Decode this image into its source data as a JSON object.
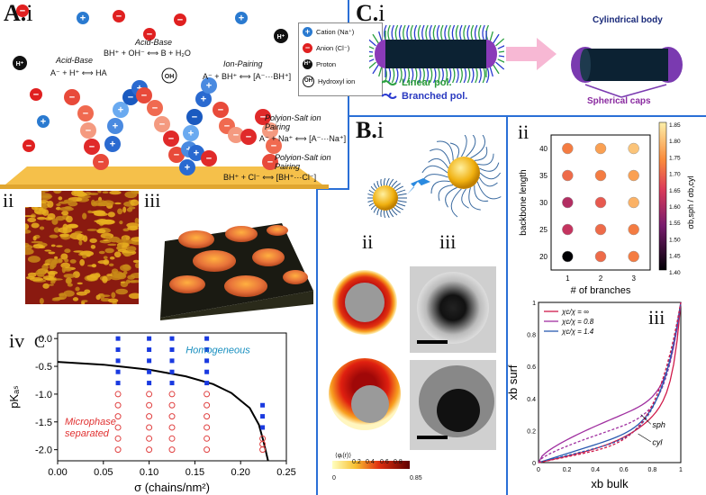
{
  "panel_a": {
    "label_a": "A.",
    "label_i": "i",
    "acid_base_left": "Acid-Base",
    "acid_base_left_eq": "A⁻ + H⁺ ⟺ HA",
    "acid_base_mid": "Acid-Base",
    "acid_base_mid_eq": "BH⁺ + OH⁻ ⟺ B + H₂O",
    "ion_pairing": "Ion-Pairing",
    "ion_pairing_eq": "A⁻ + BH⁺ ⟺ [A⁻···BH⁺]",
    "polyion_salt_1": "Polyion-Salt ion Pairing",
    "polyion_salt_1_eq": "A⁻ + Na⁺ ⟺ [A⁻···Na⁺]",
    "polyion_salt_2": "Polyion-Salt ion Pairing",
    "polyion_salt_2_eq": "BH⁺ + Cl⁻ ⟺ [BH⁺···Cl⁻]",
    "legend": {
      "cation": "Cation (Na⁺)",
      "anion": "Anion (Cl⁻)",
      "proton": "Proton",
      "hydroxyl": "Hydroxyl ion",
      "cation_symbol": "+",
      "anion_symbol": "−",
      "proton_symbol": "H⁺",
      "hydroxyl_symbol": "OH"
    },
    "label_ii": "ii",
    "label_iii": "iii",
    "label_iv": "iv",
    "label_c": "C"
  },
  "chart_data": {
    "type": "scatter",
    "title": "",
    "xlabel": "σ (chains/nm²)",
    "ylabel": "pKₐₛ",
    "xlim": [
      0.0,
      0.25
    ],
    "ylim": [
      -2.2,
      0.1
    ],
    "xticks": [
      "0.00",
      "0.05",
      "0.10",
      "0.15",
      "0.20",
      "0.25"
    ],
    "yticks": [
      "0.0",
      "-0.5",
      "-1.0",
      "-1.5",
      "-2.0"
    ],
    "annotations": {
      "homogeneous": "Homogeneous",
      "microphase": "Microphase separated"
    },
    "curve": {
      "x": [
        0.0,
        0.05,
        0.1,
        0.14,
        0.17,
        0.19,
        0.21,
        0.22,
        0.225,
        0.23
      ],
      "y": [
        -0.42,
        -0.47,
        -0.56,
        -0.68,
        -0.82,
        -0.98,
        -1.25,
        -1.55,
        -1.85,
        -2.2
      ]
    },
    "series": [
      {
        "name": "Homogeneous",
        "x": [
          0.066,
          0.066,
          0.066,
          0.066,
          0.066,
          0.1,
          0.1,
          0.1,
          0.1,
          0.1,
          0.125,
          0.125,
          0.125,
          0.125,
          0.125,
          0.163,
          0.163,
          0.163,
          0.163,
          0.163,
          0.224,
          0.224,
          0.224
        ],
        "y": [
          0.0,
          -0.2,
          -0.4,
          -0.6,
          -0.8,
          0.0,
          -0.2,
          -0.4,
          -0.6,
          -0.8,
          0.0,
          -0.2,
          -0.4,
          -0.6,
          -0.8,
          0.0,
          -0.2,
          -0.4,
          -0.6,
          -0.8,
          -1.2,
          -1.4,
          -1.6
        ]
      },
      {
        "name": "Microphase separated",
        "x": [
          0.066,
          0.066,
          0.066,
          0.066,
          0.066,
          0.066,
          0.1,
          0.1,
          0.1,
          0.1,
          0.1,
          0.1,
          0.125,
          0.125,
          0.125,
          0.125,
          0.125,
          0.125,
          0.163,
          0.163,
          0.163,
          0.163,
          0.163,
          0.163,
          0.224,
          0.224,
          0.224
        ],
        "y": [
          -1.0,
          -1.2,
          -1.4,
          -1.6,
          -1.8,
          -2.0,
          -1.0,
          -1.2,
          -1.4,
          -1.6,
          -1.8,
          -2.0,
          -1.0,
          -1.2,
          -1.4,
          -1.6,
          -1.8,
          -2.0,
          -1.0,
          -1.2,
          -1.4,
          -1.6,
          -1.8,
          -2.0,
          -1.8,
          -1.9,
          -2.0
        ]
      }
    ]
  },
  "panel_b": {
    "label_b": "B.",
    "label_i": "i",
    "label_ii": "ii",
    "label_iii": "iii",
    "colorbar_label": "⟨φᵢ(r)⟩",
    "colorbar_ticks": [
      "0",
      "0.2",
      "0.4",
      "0.6",
      "0.8",
      "0.85"
    ]
  },
  "panel_c": {
    "label_c": "C.",
    "label_i": "i",
    "linear_pol": "Linear pol.",
    "branched_pol": "Branched pol.",
    "cylindrical_body": "Cylindrical body",
    "spherical_caps": "Spherical caps",
    "label_ii": "ii",
    "label_iii": "iii",
    "heatmap": {
      "xlabel": "# of branches",
      "ylabel": "backbone length",
      "colorbar_label": "σb,sph / σb,cyl",
      "x": [
        1,
        2,
        3
      ],
      "y": [
        20,
        25,
        30,
        35,
        40
      ],
      "values": [
        [
          1.4,
          1.7,
          1.72
        ],
        [
          1.62,
          1.7,
          1.72
        ],
        [
          1.6,
          1.68,
          1.78
        ],
        [
          1.7,
          1.72,
          1.76
        ],
        [
          1.72,
          1.76,
          1.8
        ]
      ],
      "cbar_ticks": [
        "1.85",
        "1.80",
        "1.75",
        "1.70",
        "1.65",
        "1.60",
        "1.55",
        "1.50",
        "1.45",
        "1.40"
      ],
      "xticks": [
        "1",
        "2",
        "3"
      ],
      "yticks": [
        "20",
        "25",
        "30",
        "35",
        "40"
      ]
    },
    "lines": {
      "ylabel": "xb surf",
      "xlabel": "xb bulk",
      "legend": [
        "χc/χ = ∞",
        "χc/χ = 0.8",
        "χc/χ = 1.4"
      ],
      "sph": "sph",
      "cyl": "cyl",
      "xticks": [
        "0",
        "0.2",
        "0.4",
        "0.6",
        "0.8",
        "1"
      ],
      "yticks": [
        "0",
        "0.2",
        "0.4",
        "0.6",
        "0.8",
        "1"
      ]
    }
  }
}
